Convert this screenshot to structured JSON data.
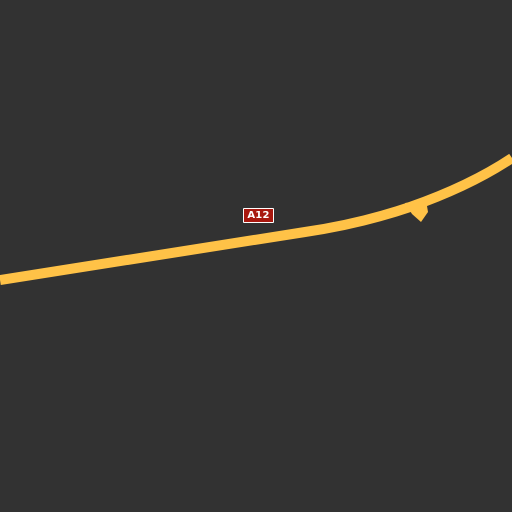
{
  "map": {
    "background_color": "#323232",
    "road": {
      "ref": "A12",
      "color": "#ffc247",
      "shield_color": "#a8180f",
      "shield_text_color": "#ffffff"
    }
  }
}
